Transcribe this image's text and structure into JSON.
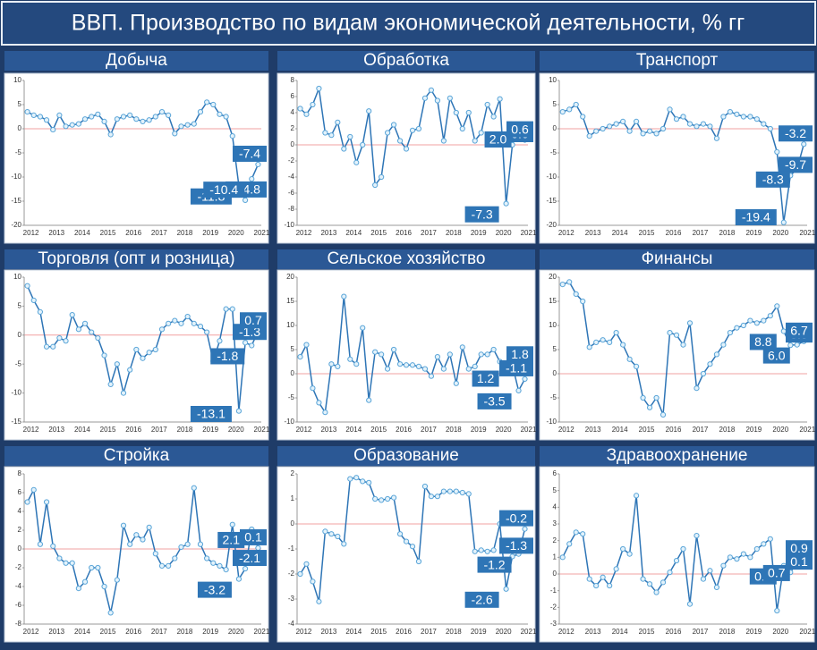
{
  "title": "ВВП. Производство по видам экономической деятельности, % гг",
  "chart_data": [
    {
      "type": "line",
      "title": "Добыча",
      "color": "#2e75b6",
      "zero_line_color": "#f2a0a0",
      "categories": [
        "2012",
        null,
        null,
        null,
        "2013",
        null,
        null,
        null,
        "2014",
        null,
        null,
        null,
        "2015",
        null,
        null,
        null,
        "2016",
        null,
        null,
        null,
        "2017",
        null,
        null,
        null,
        "2018",
        null,
        null,
        null,
        "2019",
        null,
        null,
        null,
        "2020",
        null,
        null,
        null,
        "2021"
      ],
      "values": [
        3.5,
        2.8,
        2.5,
        1.8,
        -0.2,
        2.8,
        0.5,
        0.8,
        1.0,
        2.0,
        2.5,
        3.0,
        1.5,
        -1.2,
        2.0,
        2.5,
        2.8,
        2.0,
        1.5,
        1.8,
        2.5,
        3.5,
        2.8,
        -1.0,
        0.5,
        0.8,
        1.0,
        3.5,
        5.5,
        5.0,
        3.0,
        2.5,
        -1.5,
        -11.8,
        -14.8,
        -10.4,
        -7.4
      ],
      "value_labels": [
        null,
        null,
        null,
        null,
        null,
        null,
        null,
        null,
        null,
        null,
        null,
        null,
        null,
        null,
        null,
        null,
        null,
        null,
        null,
        null,
        null,
        null,
        null,
        null,
        null,
        null,
        null,
        null,
        null,
        null,
        null,
        null,
        null,
        "-11.8",
        "-14.8",
        "-10.4",
        "-7.4"
      ],
      "ylim": [
        -20,
        10
      ],
      "yticks": [
        -20,
        -15,
        -10,
        -5,
        0,
        5,
        10
      ]
    },
    {
      "type": "line",
      "title": "Обработка",
      "color": "#2e75b6",
      "zero_line_color": "#f2a0a0",
      "categories": [
        "2012",
        null,
        null,
        null,
        "2013",
        null,
        null,
        null,
        "2014",
        null,
        null,
        null,
        "2015",
        null,
        null,
        null,
        "2016",
        null,
        null,
        null,
        "2017",
        null,
        null,
        null,
        "2018",
        null,
        null,
        null,
        "2019",
        null,
        null,
        null,
        "2020",
        null,
        null,
        null,
        "2021"
      ],
      "values": [
        4.5,
        3.8,
        5.0,
        7.0,
        1.5,
        1.2,
        2.8,
        -0.5,
        1.0,
        -2.2,
        0.0,
        4.2,
        -5.0,
        -4.0,
        1.5,
        2.5,
        0.5,
        -0.5,
        1.8,
        2.0,
        5.8,
        6.8,
        5.5,
        0.5,
        5.8,
        4.0,
        2.0,
        4.0,
        0.5,
        1.5,
        5.0,
        3.5,
        5.7,
        -7.3,
        0.0,
        2.0,
        0.6
      ],
      "value_labels": [
        null,
        null,
        null,
        null,
        null,
        null,
        null,
        null,
        null,
        null,
        null,
        null,
        null,
        null,
        null,
        null,
        null,
        null,
        null,
        null,
        null,
        null,
        null,
        null,
        null,
        null,
        null,
        null,
        null,
        null,
        null,
        null,
        null,
        "-7.3",
        "0.0",
        "2.0",
        "0.6"
      ],
      "ylim": [
        -10,
        8
      ],
      "yticks": [
        -10,
        -8,
        -6,
        -4,
        -2,
        0,
        2,
        4,
        6,
        8
      ]
    },
    {
      "type": "line",
      "title": "Транспорт",
      "color": "#2e75b6",
      "zero_line_color": "#f2a0a0",
      "categories": [
        "2012",
        null,
        null,
        null,
        "2013",
        null,
        null,
        null,
        "2014",
        null,
        null,
        null,
        "2015",
        null,
        null,
        null,
        "2016",
        null,
        null,
        null,
        "2017",
        null,
        null,
        null,
        "2018",
        null,
        null,
        null,
        "2019",
        null,
        null,
        null,
        "2020",
        null,
        null,
        null,
        "2021"
      ],
      "values": [
        3.5,
        4,
        5,
        2.5,
        -1.5,
        -0.5,
        0,
        0.5,
        1,
        1.5,
        -0.5,
        1.5,
        -1,
        -0.5,
        -1,
        0,
        4,
        2,
        2.5,
        1,
        0.5,
        1,
        0.5,
        -2,
        2.5,
        3.5,
        3,
        2.5,
        2.5,
        2,
        1,
        0,
        -4.8,
        -19.4,
        -9.7,
        -8.3,
        -3.2
      ],
      "value_labels": [
        null,
        null,
        null,
        null,
        null,
        null,
        null,
        null,
        null,
        null,
        null,
        null,
        null,
        null,
        null,
        null,
        null,
        null,
        null,
        null,
        null,
        null,
        null,
        null,
        null,
        null,
        null,
        null,
        null,
        null,
        null,
        null,
        null,
        "-19.4",
        "-9.7",
        "-8.3",
        "-3.2"
      ],
      "ylim": [
        -20,
        10
      ],
      "yticks": [
        -20,
        -15,
        -10,
        -5,
        0,
        5,
        10
      ]
    },
    {
      "type": "line",
      "title": "Торговля (опт и розница)",
      "color": "#2e75b6",
      "zero_line_color": "#f2a0a0",
      "categories": [
        "2012",
        null,
        null,
        null,
        "2013",
        null,
        null,
        null,
        "2014",
        null,
        null,
        null,
        "2015",
        null,
        null,
        null,
        "2016",
        null,
        null,
        null,
        "2017",
        null,
        null,
        null,
        "2018",
        null,
        null,
        null,
        "2019",
        null,
        null,
        null,
        "2020",
        null,
        null,
        null,
        "2021"
      ],
      "values": [
        8.5,
        6,
        4,
        -2,
        -2,
        -0.5,
        -1,
        3.5,
        1,
        2,
        0.5,
        -0.5,
        -3.5,
        -8.5,
        -5,
        -10,
        -6,
        -2.5,
        -4,
        -3,
        -2.5,
        1,
        2,
        2.5,
        2,
        3.2,
        2,
        1.5,
        0.5,
        -4.5,
        -1,
        4.5,
        4.5,
        -13.1,
        -1.3,
        -1.8,
        0.7
      ],
      "value_labels": [
        null,
        null,
        null,
        null,
        null,
        null,
        null,
        null,
        null,
        null,
        null,
        null,
        null,
        null,
        null,
        null,
        null,
        null,
        null,
        null,
        null,
        null,
        null,
        null,
        null,
        null,
        null,
        null,
        null,
        null,
        null,
        null,
        null,
        "-13.1",
        "-1.3",
        "-1.8",
        "0.7"
      ],
      "ylim": [
        -15,
        10
      ],
      "yticks": [
        -15,
        -10,
        -5,
        0,
        5,
        10
      ]
    },
    {
      "type": "line",
      "title": "Сельское хозяйство",
      "color": "#2e75b6",
      "zero_line_color": "#f2a0a0",
      "categories": [
        "2012",
        null,
        null,
        null,
        "2013",
        null,
        null,
        null,
        "2014",
        null,
        null,
        null,
        "2015",
        null,
        null,
        null,
        "2016",
        null,
        null,
        null,
        "2017",
        null,
        null,
        null,
        "2018",
        null,
        null,
        null,
        "2019",
        null,
        null,
        null,
        "2020",
        null,
        null,
        null,
        "2021"
      ],
      "values": [
        3.5,
        6,
        -3,
        -6,
        -8,
        2,
        1.5,
        16,
        3,
        2,
        9.5,
        -5.5,
        4.5,
        4,
        1,
        5,
        2,
        1.8,
        1.8,
        1.5,
        1,
        -0.5,
        3.5,
        1,
        4,
        -2,
        5.5,
        1,
        1.5,
        4,
        4,
        5,
        2.5,
        1.2,
        1.8,
        -3.5,
        -1.1
      ],
      "value_labels": [
        null,
        null,
        null,
        null,
        null,
        null,
        null,
        null,
        null,
        null,
        null,
        null,
        null,
        null,
        null,
        null,
        null,
        null,
        null,
        null,
        null,
        null,
        null,
        null,
        null,
        null,
        null,
        null,
        null,
        null,
        null,
        null,
        null,
        "1.2",
        "1.8",
        "-3.5",
        "-1.1"
      ],
      "ylim": [
        -10,
        20
      ],
      "yticks": [
        -10,
        -5,
        0,
        5,
        10,
        15,
        20
      ]
    },
    {
      "type": "line",
      "title": "Финансы",
      "color": "#2e75b6",
      "zero_line_color": "#f2a0a0",
      "categories": [
        "2012",
        null,
        null,
        null,
        "2013",
        null,
        null,
        null,
        "2014",
        null,
        null,
        null,
        "2015",
        null,
        null,
        null,
        "2016",
        null,
        null,
        null,
        "2017",
        null,
        null,
        null,
        "2018",
        null,
        null,
        null,
        "2019",
        null,
        null,
        null,
        "2020",
        null,
        null,
        null,
        "2021"
      ],
      "values": [
        18.5,
        19,
        16.5,
        15,
        5.5,
        6.5,
        7,
        6.5,
        8.5,
        6,
        3,
        1.5,
        -5,
        -7,
        -5,
        -8.5,
        8.5,
        8,
        6,
        10.5,
        -3,
        0,
        2,
        4,
        6,
        8.5,
        9.5,
        10,
        11,
        10.5,
        11,
        12,
        14,
        8.8,
        5.9,
        6.0,
        6.7
      ],
      "value_labels": [
        null,
        null,
        null,
        null,
        null,
        null,
        null,
        null,
        null,
        null,
        null,
        null,
        null,
        null,
        null,
        null,
        null,
        null,
        null,
        null,
        null,
        null,
        null,
        null,
        null,
        null,
        null,
        null,
        null,
        null,
        null,
        null,
        null,
        "8.8",
        "5.9",
        "6.0",
        "6.7"
      ],
      "ylim": [
        -10,
        20
      ],
      "yticks": [
        -10,
        -5,
        0,
        5,
        10,
        15,
        20
      ]
    },
    {
      "type": "line",
      "title": "Стройка",
      "color": "#2e75b6",
      "zero_line_color": "#f2a0a0",
      "categories": [
        "2012",
        null,
        null,
        null,
        "2013",
        null,
        null,
        null,
        "2014",
        null,
        null,
        null,
        "2015",
        null,
        null,
        null,
        "2016",
        null,
        null,
        null,
        "2017",
        null,
        null,
        null,
        "2018",
        null,
        null,
        null,
        "2019",
        null,
        null,
        null,
        "2020",
        null,
        null,
        null,
        "2021"
      ],
      "values": [
        5,
        6.3,
        0.5,
        5,
        0.3,
        -1,
        -1.5,
        -1.5,
        -4.2,
        -3.5,
        -2,
        -2,
        -4,
        -6.8,
        -3.3,
        2.5,
        0.5,
        1.5,
        1,
        2.3,
        -0.5,
        -1.8,
        -1.8,
        -1,
        0.2,
        0.5,
        6.5,
        0.5,
        -1,
        -1.5,
        -1.8,
        -2.2,
        2.6,
        -3.2,
        -2.1,
        2.1,
        0.1
      ],
      "value_labels": [
        null,
        null,
        null,
        null,
        null,
        null,
        null,
        null,
        null,
        null,
        null,
        null,
        null,
        null,
        null,
        null,
        null,
        null,
        null,
        null,
        null,
        null,
        null,
        null,
        null,
        null,
        null,
        null,
        null,
        null,
        null,
        null,
        null,
        "-3.2",
        "-2.1",
        "2.1",
        "0.1"
      ],
      "ylim": [
        -8,
        8
      ],
      "yticks": [
        -8,
        -6,
        -4,
        -2,
        0,
        2,
        4,
        6,
        8
      ]
    },
    {
      "type": "line",
      "title": "Образование",
      "color": "#2e75b6",
      "zero_line_color": "#f2a0a0",
      "categories": [
        "2012",
        null,
        null,
        null,
        "2013",
        null,
        null,
        null,
        "2014",
        null,
        null,
        null,
        "2015",
        null,
        null,
        null,
        "2016",
        null,
        null,
        null,
        "2017",
        null,
        null,
        null,
        "2018",
        null,
        null,
        null,
        "2019",
        null,
        null,
        null,
        "2020",
        null,
        null,
        null,
        "2021"
      ],
      "values": [
        -2,
        -1.6,
        -2.3,
        -3.1,
        -0.3,
        -0.4,
        -0.5,
        -0.8,
        1.8,
        1.85,
        1.7,
        1.65,
        1,
        0.95,
        1,
        1.05,
        -0.4,
        -0.7,
        -0.9,
        -1.5,
        1.5,
        1.1,
        1.1,
        1.3,
        1.3,
        1.3,
        1.25,
        1.2,
        -1.1,
        -1.05,
        -1.1,
        -1.05,
        0,
        -2.6,
        -1.3,
        -1.2,
        -0.2
      ],
      "value_labels": [
        null,
        null,
        null,
        null,
        null,
        null,
        null,
        null,
        null,
        null,
        null,
        null,
        null,
        null,
        null,
        null,
        null,
        null,
        null,
        null,
        null,
        null,
        null,
        null,
        null,
        null,
        null,
        null,
        null,
        null,
        null,
        null,
        null,
        "-2.6",
        "-1.3",
        "-1.2",
        "-0.2"
      ],
      "ylim": [
        -4,
        2
      ],
      "yticks": [
        -4,
        -3,
        -2,
        -1,
        0,
        1,
        2
      ]
    },
    {
      "type": "line",
      "title": "Здравоохранение",
      "color": "#2e75b6",
      "zero_line_color": "#f2a0a0",
      "categories": [
        "2012",
        null,
        null,
        null,
        "2013",
        null,
        null,
        null,
        "2014",
        null,
        null,
        null,
        "2015",
        null,
        null,
        null,
        "2016",
        null,
        null,
        null,
        "2017",
        null,
        null,
        null,
        "2018",
        null,
        null,
        null,
        "2019",
        null,
        null,
        null,
        "2020",
        null,
        null,
        null,
        "2021"
      ],
      "values": [
        1,
        1.8,
        2.5,
        2.4,
        -0.3,
        -0.7,
        -0.2,
        -0.7,
        0.3,
        1.5,
        1.2,
        4.7,
        -0.3,
        -0.6,
        -1.1,
        -0.5,
        0.1,
        0.8,
        1.5,
        -1.8,
        2.3,
        -0.3,
        0.2,
        -0.8,
        0.5,
        1,
        0.9,
        1.2,
        1,
        1.5,
        1.8,
        2.1,
        -2.2,
        0.5,
        0.1,
        0.7,
        0.9
      ],
      "value_labels": [
        null,
        null,
        null,
        null,
        null,
        null,
        null,
        null,
        null,
        null,
        null,
        null,
        null,
        null,
        null,
        null,
        null,
        null,
        null,
        null,
        null,
        null,
        null,
        null,
        null,
        null,
        null,
        null,
        null,
        null,
        null,
        null,
        null,
        "0.5",
        "0.1",
        "0.7",
        "0.9"
      ],
      "ylim": [
        -3,
        6
      ],
      "yticks": [
        -3,
        -2,
        -1,
        0,
        1,
        2,
        3,
        4,
        5,
        6
      ]
    }
  ]
}
